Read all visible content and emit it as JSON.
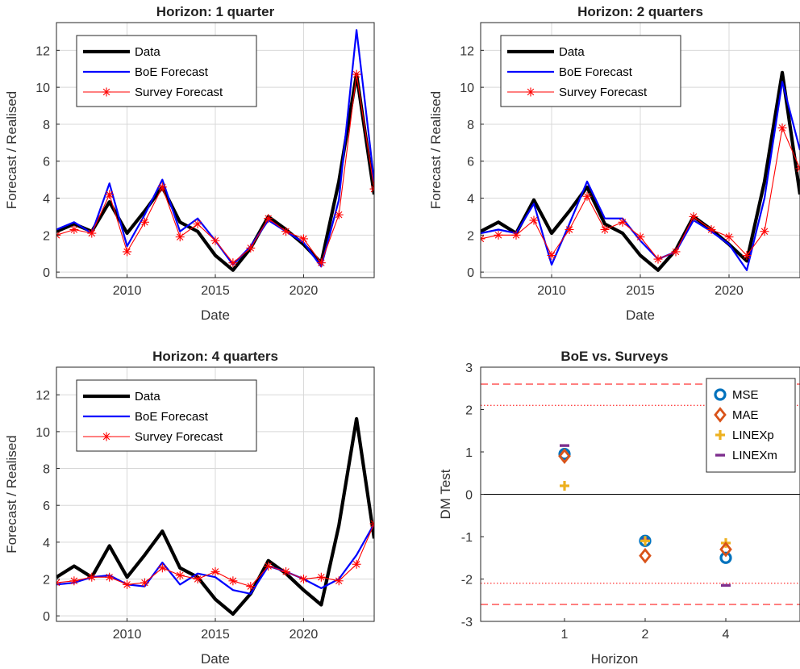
{
  "colors": {
    "data": "#000000",
    "boe": "#0000ff",
    "survey": "#ff0000",
    "mse": "#0072BD",
    "mae": "#D95319",
    "linexp": "#EDB120",
    "linexm": "#7E2F8E",
    "crit": "#ff0000"
  },
  "chart_data": [
    {
      "type": "line",
      "title": "Horizon: 1 quarter",
      "xlabel": "Date",
      "ylabel": "Forecast / Realised",
      "xlim": [
        2006,
        2024
      ],
      "ylim": [
        -0.3,
        13.5
      ],
      "xticks": [
        2010,
        2015,
        2020
      ],
      "yticks": [
        0,
        2,
        4,
        6,
        8,
        10,
        12
      ],
      "grid": true,
      "legend_position": "top-left",
      "x": [
        2006,
        2007,
        2008,
        2009,
        2010,
        2011,
        2012,
        2013,
        2014,
        2015,
        2016,
        2017,
        2018,
        2019,
        2020,
        2021,
        2022,
        2023,
        2024
      ],
      "series": [
        {
          "name": "Data",
          "values": [
            2.2,
            2.6,
            2.2,
            3.8,
            2.1,
            3.3,
            4.6,
            2.7,
            2.2,
            0.9,
            0.1,
            1.3,
            3.0,
            2.3,
            1.5,
            0.5,
            4.9,
            10.7,
            4.2
          ]
        },
        {
          "name": "BoE Forecast",
          "values": [
            2.3,
            2.7,
            2.1,
            4.8,
            1.4,
            3.1,
            5.0,
            2.2,
            2.9,
            1.7,
            0.4,
            1.4,
            2.8,
            2.2,
            1.6,
            0.3,
            3.9,
            13.1,
            4.9
          ]
        },
        {
          "name": "Survey Forecast",
          "values": [
            2.0,
            2.3,
            2.1,
            4.2,
            1.1,
            2.7,
            4.6,
            1.9,
            2.6,
            1.7,
            0.5,
            1.3,
            2.9,
            2.2,
            1.8,
            0.5,
            3.1,
            10.7,
            4.5
          ]
        }
      ]
    },
    {
      "type": "line",
      "title": "Horizon: 2 quarters",
      "xlabel": "Date",
      "ylabel": "Forecast / Realised",
      "xlim": [
        2006,
        2024
      ],
      "ylim": [
        -0.3,
        13.5
      ],
      "xticks": [
        2010,
        2015,
        2020
      ],
      "yticks": [
        0,
        2,
        4,
        6,
        8,
        10,
        12
      ],
      "grid": true,
      "legend_position": "top-left",
      "x": [
        2006,
        2007,
        2008,
        2009,
        2010,
        2011,
        2012,
        2013,
        2014,
        2015,
        2016,
        2017,
        2018,
        2019,
        2020,
        2021,
        2022,
        2023,
        2024
      ],
      "series": [
        {
          "name": "Data",
          "values": [
            2.2,
            2.7,
            2.1,
            3.9,
            2.1,
            3.3,
            4.6,
            2.6,
            2.1,
            0.9,
            0.1,
            1.2,
            3.0,
            2.3,
            1.5,
            0.6,
            4.9,
            10.8,
            4.2
          ]
        },
        {
          "name": "BoE Forecast",
          "values": [
            2.1,
            2.3,
            2.1,
            3.7,
            0.4,
            2.6,
            4.9,
            2.9,
            2.9,
            1.7,
            0.7,
            1.1,
            2.8,
            2.2,
            1.5,
            0.1,
            4.0,
            10.3,
            6.6
          ]
        },
        {
          "name": "Survey Forecast",
          "values": [
            1.8,
            2.0,
            2.0,
            2.8,
            0.9,
            2.3,
            4.1,
            2.3,
            2.7,
            1.9,
            0.7,
            1.1,
            3.0,
            2.3,
            1.9,
            0.9,
            2.2,
            7.8,
            5.6
          ]
        }
      ]
    },
    {
      "type": "line",
      "title": "Horizon: 4 quarters",
      "xlabel": "Date",
      "ylabel": "Forecast / Realised",
      "xlim": [
        2006,
        2024
      ],
      "ylim": [
        -0.3,
        13.5
      ],
      "xticks": [
        2010,
        2015,
        2020
      ],
      "yticks": [
        0,
        2,
        4,
        6,
        8,
        10,
        12
      ],
      "grid": true,
      "legend_position": "top-left",
      "x": [
        2006,
        2007,
        2008,
        2009,
        2010,
        2011,
        2012,
        2013,
        2014,
        2015,
        2016,
        2017,
        2018,
        2019,
        2020,
        2021,
        2022,
        2023,
        2024
      ],
      "series": [
        {
          "name": "Data",
          "values": [
            2.1,
            2.7,
            2.1,
            3.8,
            2.1,
            3.3,
            4.6,
            2.6,
            2.1,
            0.9,
            0.1,
            1.2,
            3.0,
            2.3,
            1.4,
            0.6,
            4.9,
            10.7,
            4.2
          ]
        },
        {
          "name": "BoE Forecast",
          "values": [
            1.7,
            1.8,
            2.1,
            2.2,
            1.7,
            1.6,
            2.9,
            1.7,
            2.3,
            2.1,
            1.4,
            1.2,
            2.7,
            2.4,
            2.0,
            1.5,
            2.0,
            3.3,
            5.0
          ]
        },
        {
          "name": "Survey Forecast",
          "values": [
            1.8,
            1.9,
            2.1,
            2.1,
            1.7,
            1.8,
            2.6,
            2.2,
            2.0,
            2.4,
            1.9,
            1.6,
            2.7,
            2.4,
            2.0,
            2.1,
            1.9,
            2.8,
            5.0
          ]
        }
      ]
    },
    {
      "type": "scatter",
      "title": "BoE vs. Surveys",
      "xlabel": "Horizon",
      "ylabel": "DM Test",
      "categories": [
        "1",
        "2",
        "4"
      ],
      "ylim": [
        -3,
        3
      ],
      "yticks": [
        -3,
        -2,
        -1,
        0,
        1,
        2,
        3
      ],
      "ytick_labels": [
        "-3",
        "-2",
        "-1",
        "0",
        "1",
        "2",
        "3"
      ],
      "reference_lines": {
        "zero": 0,
        "critical_5pct": [
          2.1,
          -2.1
        ],
        "critical_1pct": [
          2.6,
          -2.6
        ]
      },
      "legend_position": "top-right",
      "series": [
        {
          "name": "MSE",
          "values": [
            0.95,
            -1.1,
            -1.5
          ]
        },
        {
          "name": "MAE",
          "values": [
            0.9,
            -1.45,
            -1.3
          ]
        },
        {
          "name": "LINEXp",
          "values": [
            0.2,
            -1.1,
            -1.15
          ]
        },
        {
          "name": "LINEXm",
          "values": [
            1.15,
            -1.05,
            -2.15
          ]
        }
      ]
    }
  ]
}
